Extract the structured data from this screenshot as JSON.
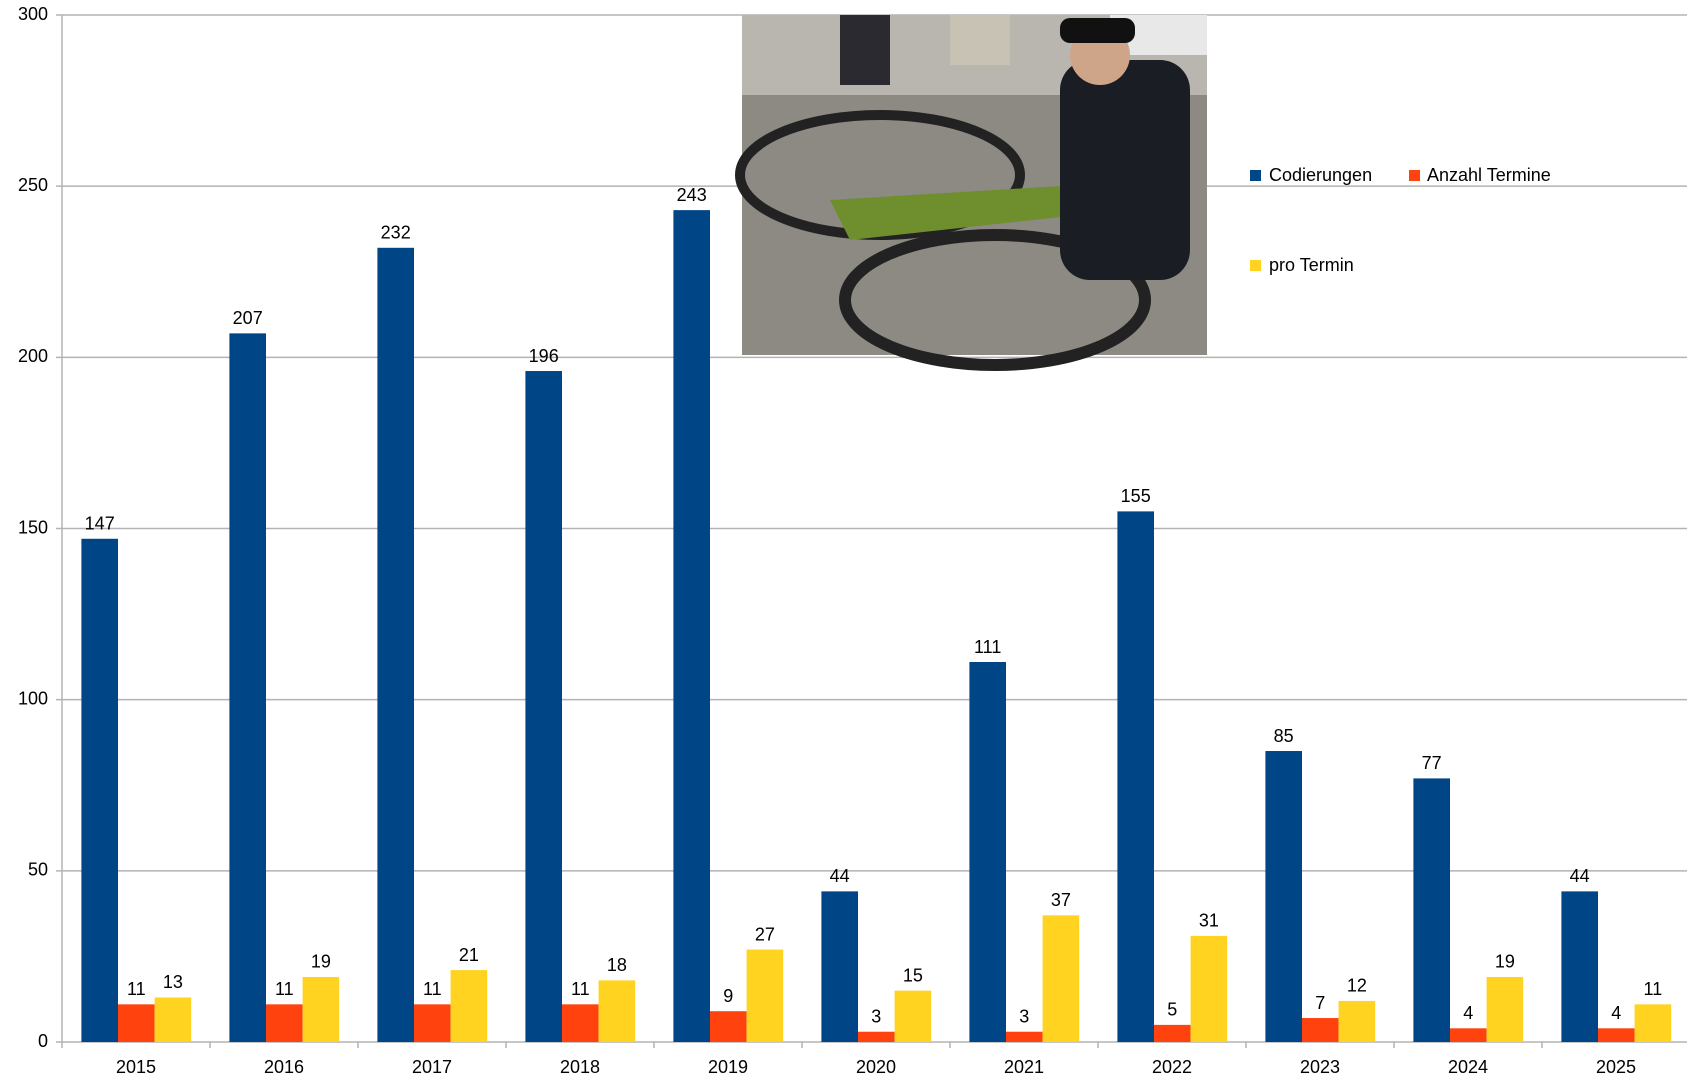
{
  "chart_data": {
    "type": "bar",
    "categories": [
      "2015",
      "2016",
      "2017",
      "2018",
      "2019",
      "2020",
      "2021",
      "2022",
      "2023",
      "2024",
      "2025"
    ],
    "series": [
      {
        "name": "Codierungen",
        "color": "#004586",
        "values": [
          147,
          207,
          232,
          196,
          243,
          44,
          111,
          155,
          85,
          77,
          44
        ]
      },
      {
        "name": "Anzahl Termine",
        "color": "#ff420e",
        "values": [
          11,
          11,
          11,
          11,
          9,
          3,
          3,
          5,
          7,
          4,
          4
        ]
      },
      {
        "name": "pro Termin",
        "color": "#ffd320",
        "values": [
          13,
          19,
          21,
          18,
          27,
          15,
          37,
          31,
          12,
          19,
          11
        ]
      }
    ],
    "ylim": [
      0,
      300
    ],
    "yticks": [
      0,
      50,
      100,
      150,
      200,
      250,
      300
    ],
    "grid": true
  }
}
